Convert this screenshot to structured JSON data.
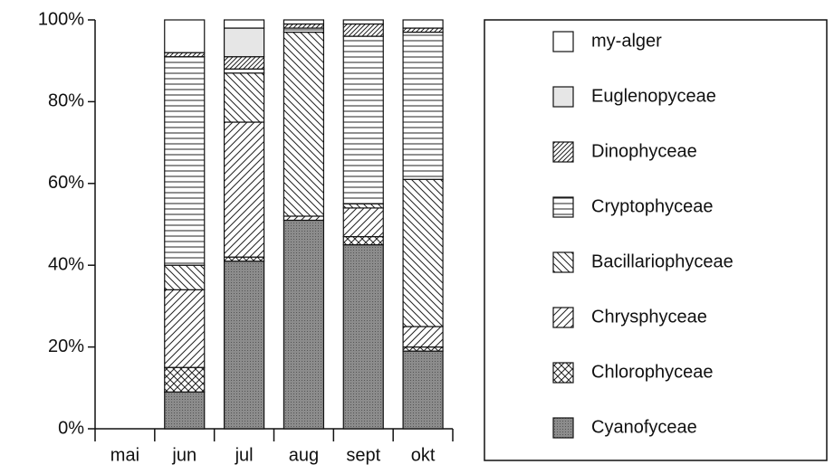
{
  "chart_data": {
    "type": "stacked_bar",
    "categories": [
      "mai",
      "jun",
      "jul",
      "aug",
      "sept",
      "okt"
    ],
    "series": [
      {
        "name": "Cyanofyceae",
        "color": "#8c8c8c",
        "pattern": "dots",
        "values": [
          null,
          9,
          41,
          51,
          45,
          19
        ]
      },
      {
        "name": "Chlorophyceae",
        "color": "#ffffff",
        "pattern": "cross",
        "values": [
          null,
          6,
          1,
          0,
          2,
          1
        ]
      },
      {
        "name": "Chrysphyceae",
        "color": "#ffffff",
        "pattern": "diag-up",
        "values": [
          null,
          19,
          33,
          1,
          7,
          5
        ]
      },
      {
        "name": "Bacillariophyceae",
        "color": "#ffffff",
        "pattern": "diag-down",
        "values": [
          null,
          6,
          12,
          45,
          1,
          36
        ]
      },
      {
        "name": "Cryptophyceae",
        "color": "#ffffff",
        "pattern": "horizontal",
        "values": [
          null,
          51,
          1,
          1,
          41,
          36
        ]
      },
      {
        "name": "Dinophyceae",
        "color": "#ffffff",
        "pattern": "diag-up-dense",
        "values": [
          null,
          1,
          3,
          1,
          3,
          1
        ]
      },
      {
        "name": "Euglenopyceae",
        "color": "#e6e6e6",
        "pattern": "none",
        "values": [
          null,
          0,
          7,
          0,
          0,
          0
        ]
      },
      {
        "name": "my-alger",
        "color": "#ffffff",
        "pattern": "none",
        "values": [
          null,
          8,
          2,
          1,
          1,
          2
        ]
      }
    ],
    "ylim": [
      0,
      100
    ],
    "yticks": [
      {
        "value": 0,
        "label": "0%"
      },
      {
        "value": 20,
        "label": "20%"
      },
      {
        "value": 40,
        "label": "40%"
      },
      {
        "value": 60,
        "label": "60%"
      },
      {
        "value": 80,
        "label": "80%"
      },
      {
        "value": 100,
        "label": "100%"
      }
    ],
    "legend": "right"
  }
}
